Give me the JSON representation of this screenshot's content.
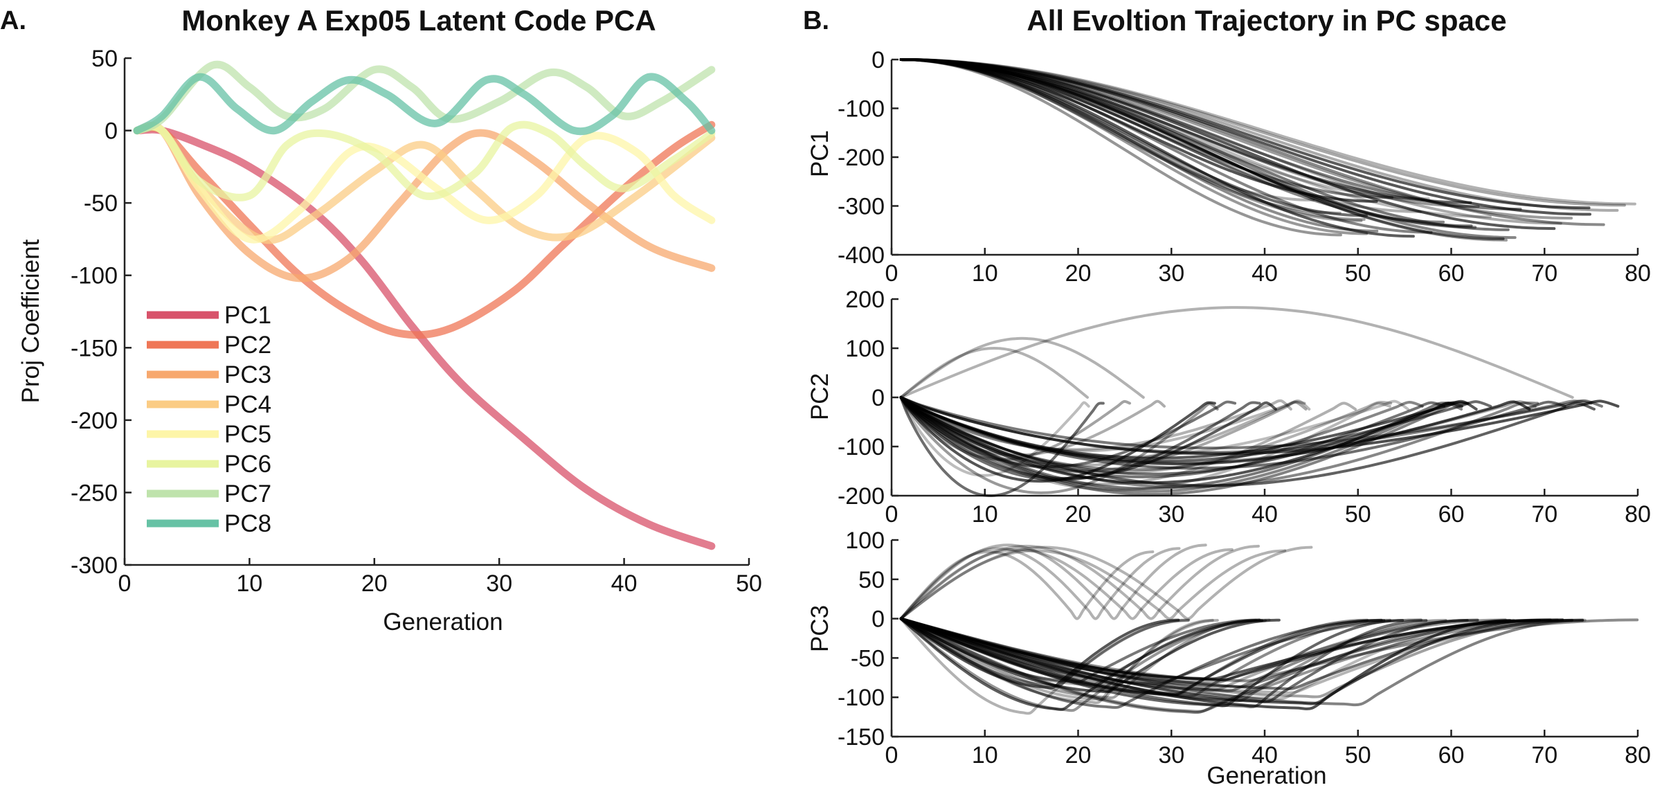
{
  "colors": {
    "PC1": "#d8526a",
    "PC2": "#ef7656",
    "PC3": "#f7a86e",
    "PC4": "#fbcc84",
    "PC5": "#fdf5a8",
    "PC6": "#e8f4a0",
    "PC7": "#bfe3ac",
    "PC8": "#66c2a5",
    "trajectory": "#000000",
    "axis": "#222222"
  },
  "chart_data": [
    {
      "type": "line",
      "panel_label": "A.",
      "title": "Monkey A Exp05 Latent Code PCA",
      "xlabel": "Generation",
      "ylabel": "Proj Coefficient",
      "xlim": [
        0,
        50
      ],
      "ylim": [
        -300,
        50
      ],
      "xticks": [
        "0",
        "10",
        "20",
        "30",
        "40",
        "50"
      ],
      "yticks": [
        "-300",
        "-250",
        "-200",
        "-150",
        "-100",
        "-50",
        "0",
        "50"
      ],
      "legend_position": "lower-left",
      "x": [
        1,
        47
      ],
      "series": [
        {
          "name": "PC1",
          "points": [
            [
              1,
              0
            ],
            [
              3,
              0
            ],
            [
              6,
              -9
            ],
            [
              10,
              -25
            ],
            [
              15,
              -55
            ],
            [
              19,
              -90
            ],
            [
              23,
              -135
            ],
            [
              27,
              -175
            ],
            [
              32,
              -213
            ],
            [
              37,
              -248
            ],
            [
              42,
              -272
            ],
            [
              47,
              -287
            ]
          ]
        },
        {
          "name": "PC2",
          "points": [
            [
              1,
              0
            ],
            [
              3,
              0
            ],
            [
              6,
              -28
            ],
            [
              10,
              -65
            ],
            [
              14,
              -100
            ],
            [
              18,
              -125
            ],
            [
              22,
              -140
            ],
            [
              26,
              -137
            ],
            [
              31,
              -112
            ],
            [
              35,
              -80
            ],
            [
              40,
              -40
            ],
            [
              44,
              -12
            ],
            [
              47,
              4
            ]
          ]
        },
        {
          "name": "PC3",
          "points": [
            [
              1,
              0
            ],
            [
              3,
              0
            ],
            [
              6,
              -45
            ],
            [
              10,
              -85
            ],
            [
              14,
              -102
            ],
            [
              18,
              -88
            ],
            [
              22,
              -50
            ],
            [
              26,
              -12
            ],
            [
              29,
              -2
            ],
            [
              33,
              -22
            ],
            [
              37,
              -50
            ],
            [
              42,
              -80
            ],
            [
              47,
              -95
            ]
          ]
        },
        {
          "name": "PC4",
          "points": [
            [
              1,
              0
            ],
            [
              3,
              0
            ],
            [
              6,
              -38
            ],
            [
              11,
              -75
            ],
            [
              15,
              -60
            ],
            [
              20,
              -28
            ],
            [
              24,
              -10
            ],
            [
              28,
              -40
            ],
            [
              32,
              -68
            ],
            [
              36,
              -72
            ],
            [
              41,
              -45
            ],
            [
              47,
              -5
            ]
          ]
        },
        {
          "name": "PC5",
          "points": [
            [
              1,
              0
            ],
            [
              3,
              0
            ],
            [
              6,
              -40
            ],
            [
              10,
              -75
            ],
            [
              14,
              -55
            ],
            [
              18,
              -15
            ],
            [
              21,
              -15
            ],
            [
              25,
              -40
            ],
            [
              29,
              -62
            ],
            [
              33,
              -45
            ],
            [
              37,
              -5
            ],
            [
              41,
              -15
            ],
            [
              44,
              -45
            ],
            [
              47,
              -62
            ]
          ]
        },
        {
          "name": "PC6",
          "points": [
            [
              1,
              0
            ],
            [
              3,
              0
            ],
            [
              6,
              -35
            ],
            [
              10,
              -45
            ],
            [
              13,
              -10
            ],
            [
              16,
              -2
            ],
            [
              20,
              -15
            ],
            [
              24,
              -45
            ],
            [
              28,
              -30
            ],
            [
              31,
              2
            ],
            [
              34,
              -2
            ],
            [
              37,
              -25
            ],
            [
              40,
              -40
            ],
            [
              44,
              -20
            ],
            [
              47,
              -2
            ]
          ]
        },
        {
          "name": "PC7",
          "points": [
            [
              1,
              0
            ],
            [
              3,
              8
            ],
            [
              7,
              45
            ],
            [
              10,
              30
            ],
            [
              13,
              10
            ],
            [
              16,
              15
            ],
            [
              20,
              42
            ],
            [
              23,
              30
            ],
            [
              26,
              8
            ],
            [
              30,
              20
            ],
            [
              34,
              40
            ],
            [
              37,
              30
            ],
            [
              40,
              10
            ],
            [
              43,
              20
            ],
            [
              47,
              42
            ]
          ]
        },
        {
          "name": "PC8",
          "points": [
            [
              1,
              0
            ],
            [
              3,
              10
            ],
            [
              6,
              37
            ],
            [
              9,
              15
            ],
            [
              12,
              0
            ],
            [
              15,
              20
            ],
            [
              18,
              35
            ],
            [
              21,
              25
            ],
            [
              25,
              5
            ],
            [
              29,
              35
            ],
            [
              32,
              25
            ],
            [
              36,
              0
            ],
            [
              39,
              10
            ],
            [
              42,
              37
            ],
            [
              45,
              20
            ],
            [
              47,
              0
            ]
          ]
        }
      ],
      "legend": [
        "PC1",
        "PC2",
        "PC3",
        "PC4",
        "PC5",
        "PC6",
        "PC7",
        "PC8"
      ]
    },
    {
      "type": "line",
      "panel_label": "B.",
      "title": "All Evoltion Trajectory in PC space",
      "xlabel": "Generation",
      "subplots": [
        {
          "ylabel": "PC1",
          "xlim": [
            0,
            80
          ],
          "ylim": [
            -400,
            0
          ],
          "xticks": [
            "0",
            "10",
            "20",
            "30",
            "40",
            "50",
            "60",
            "70",
            "80"
          ],
          "yticks": [
            "-400",
            "-300",
            "-200",
            "-100",
            "0"
          ],
          "family": {
            "kind": "descending",
            "count": 34,
            "x_start": 1,
            "x_end_range": [
              45,
              80
            ],
            "y_end_range": [
              -370,
              -280
            ]
          }
        },
        {
          "ylabel": "PC2",
          "xlim": [
            0,
            80
          ],
          "ylim": [
            -200,
            200
          ],
          "xticks": [
            "0",
            "10",
            "20",
            "30",
            "40",
            "50",
            "60",
            "70",
            "80"
          ],
          "yticks": [
            "-200",
            "-100",
            "0",
            "100",
            "200"
          ],
          "family": {
            "kind": "dip",
            "count": 34,
            "x_start": 1,
            "x_end_range": [
              21,
              80
            ],
            "dip_range": [
              -200,
              -100
            ]
          },
          "humps": [
            {
              "x_end": 21,
              "peak_x": 10,
              "peak_y": 100
            },
            {
              "x_end": 27,
              "peak_x": 14,
              "peak_y": 120
            },
            {
              "x_end": 73,
              "peak_x": 36,
              "peak_y": 183
            }
          ]
        },
        {
          "ylabel": "PC3",
          "xlim": [
            0,
            80
          ],
          "ylim": [
            -150,
            100
          ],
          "xticks": [
            "0",
            "10",
            "20",
            "30",
            "40",
            "50",
            "60",
            "70",
            "80"
          ],
          "yticks": [
            "-150",
            "-100",
            "-50",
            "0",
            "50",
            "100"
          ],
          "family": {
            "kind": "oscillating",
            "count": 36,
            "x_start": 1,
            "x_end_range": [
              30,
              80
            ],
            "amplitude_range": [
              -120,
              -75
            ]
          },
          "humps": {
            "count": 7,
            "peak_range": [
              85,
              95
            ],
            "x_end_range": [
              28,
              45
            ]
          }
        }
      ]
    }
  ]
}
